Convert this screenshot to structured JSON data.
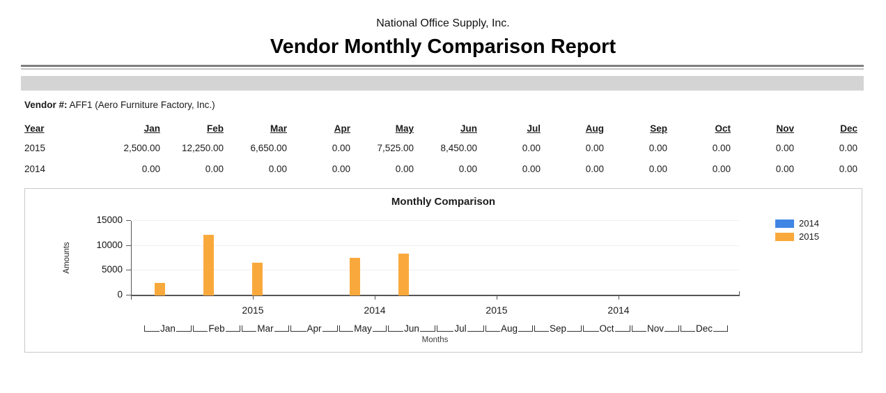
{
  "header": {
    "company": "National Office Supply, Inc.",
    "title": "Vendor Monthly Comparison Report"
  },
  "vendor": {
    "label": "Vendor #:",
    "value": "AFF1 (Aero Furniture Factory, Inc.)"
  },
  "table": {
    "columns": [
      "Year",
      "Jan",
      "Feb",
      "Mar",
      "Apr",
      "May",
      "Jun",
      "Jul",
      "Aug",
      "Sep",
      "Oct",
      "Nov",
      "Dec"
    ],
    "rows": [
      {
        "year": "2015",
        "values": [
          "2,500.00",
          "12,250.00",
          "6,650.00",
          "0.00",
          "7,525.00",
          "8,450.00",
          "0.00",
          "0.00",
          "0.00",
          "0.00",
          "0.00",
          "0.00"
        ]
      },
      {
        "year": "2014",
        "values": [
          "0.00",
          "0.00",
          "0.00",
          "0.00",
          "0.00",
          "0.00",
          "0.00",
          "0.00",
          "0.00",
          "0.00",
          "0.00",
          "0.00"
        ]
      }
    ]
  },
  "chart_data": {
    "type": "bar",
    "title": "Monthly Comparison",
    "xlabel": "Months",
    "ylabel": "Amounts",
    "categories": [
      "Jan",
      "Feb",
      "Mar",
      "Apr",
      "May",
      "Jun",
      "Jul",
      "Aug",
      "Sep",
      "Oct",
      "Nov",
      "Dec"
    ],
    "series": [
      {
        "name": "2014",
        "color": "#4186E4",
        "values": [
          0,
          0,
          0,
          0,
          0,
          0,
          0,
          0,
          0,
          0,
          0,
          0
        ]
      },
      {
        "name": "2015",
        "color": "#F9A93C",
        "values": [
          2500,
          12250,
          6650,
          0,
          7525,
          8450,
          0,
          0,
          0,
          0,
          0,
          0
        ]
      }
    ],
    "y_ticks": [
      0,
      5000,
      10000,
      15000
    ],
    "ylim": [
      0,
      15000
    ],
    "year_axis_labels": [
      "2015",
      "2014",
      "2015",
      "2014"
    ],
    "legend_position": "right",
    "grid": true,
    "grid_color": "#f3eded",
    "axis_color": "#555555"
  }
}
